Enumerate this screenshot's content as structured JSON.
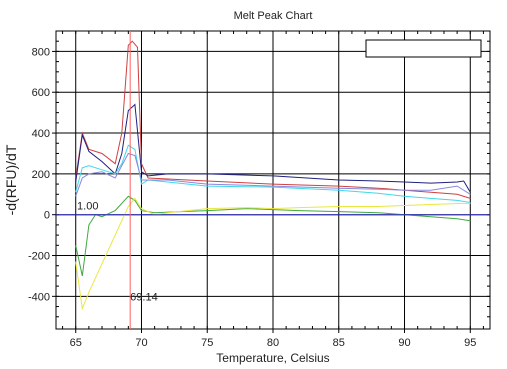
{
  "chart_data": {
    "type": "line",
    "title": "Melt Peak Chart",
    "xlabel": "Temperature, Celsius",
    "ylabel": "-d(RFU)/dT",
    "xlim": [
      63.5,
      96.5
    ],
    "ylim": [
      -560,
      900
    ],
    "xticks": [
      65,
      70,
      75,
      80,
      85,
      90,
      95
    ],
    "yticks": [
      -400,
      -200,
      0,
      200,
      400,
      600,
      800
    ],
    "grid": true,
    "legend": "top-right (empty box)",
    "threshold": {
      "value": 0,
      "label": "1.00",
      "label_x": 65.1,
      "color": "#3030c0"
    },
    "marker": {
      "x": 69.14,
      "label": "69.14",
      "color": "#ff6060"
    },
    "series": [
      {
        "color": "#d04040",
        "points": [
          [
            65,
            180
          ],
          [
            65.5,
            400
          ],
          [
            66,
            320
          ],
          [
            67,
            300
          ],
          [
            68,
            250
          ],
          [
            68.5,
            400
          ],
          [
            69,
            830
          ],
          [
            69.3,
            850
          ],
          [
            69.7,
            820
          ],
          [
            70,
            250
          ],
          [
            70.5,
            180
          ],
          [
            72,
            175
          ],
          [
            75,
            165
          ],
          [
            80,
            150
          ],
          [
            85,
            140
          ],
          [
            88,
            130
          ],
          [
            90,
            120
          ],
          [
            92,
            110
          ],
          [
            94,
            100
          ],
          [
            95,
            80
          ]
        ]
      },
      {
        "color": "#202080",
        "points": [
          [
            65,
            160
          ],
          [
            65.5,
            390
          ],
          [
            66,
            310
          ],
          [
            67,
            260
          ],
          [
            68,
            200
          ],
          [
            68.5,
            300
          ],
          [
            69,
            510
          ],
          [
            69.5,
            540
          ],
          [
            70,
            210
          ],
          [
            70.5,
            190
          ],
          [
            72,
            200
          ],
          [
            75,
            200
          ],
          [
            80,
            190
          ],
          [
            85,
            170
          ],
          [
            88,
            165
          ],
          [
            90,
            160
          ],
          [
            92,
            155
          ],
          [
            94,
            160
          ],
          [
            94.5,
            165
          ],
          [
            95,
            110
          ]
        ]
      },
      {
        "color": "#40d8e8",
        "points": [
          [
            65,
            110
          ],
          [
            65.5,
            230
          ],
          [
            66,
            240
          ],
          [
            67,
            220
          ],
          [
            68,
            200
          ],
          [
            68.5,
            250
          ],
          [
            69,
            340
          ],
          [
            69.5,
            320
          ],
          [
            70,
            150
          ],
          [
            70.5,
            170
          ],
          [
            72,
            160
          ],
          [
            75,
            140
          ],
          [
            80,
            135
          ],
          [
            85,
            120
          ],
          [
            88,
            105
          ],
          [
            90,
            90
          ],
          [
            92,
            80
          ],
          [
            94,
            70
          ],
          [
            95,
            60
          ]
        ]
      },
      {
        "color": "#8888e0",
        "points": [
          [
            65,
            90
          ],
          [
            65.5,
            180
          ],
          [
            66,
            200
          ],
          [
            67,
            210
          ],
          [
            68,
            180
          ],
          [
            69,
            300
          ],
          [
            69.5,
            290
          ],
          [
            70,
            170
          ],
          [
            72,
            170
          ],
          [
            75,
            150
          ],
          [
            80,
            140
          ],
          [
            85,
            130
          ],
          [
            88,
            125
          ],
          [
            90,
            120
          ],
          [
            92,
            120
          ],
          [
            94,
            140
          ],
          [
            95,
            100
          ]
        ]
      },
      {
        "color": "#40a840",
        "points": [
          [
            65,
            -150
          ],
          [
            65.5,
            -300
          ],
          [
            66,
            -50
          ],
          [
            66.5,
            0
          ],
          [
            67,
            -10
          ],
          [
            68,
            20
          ],
          [
            69,
            90
          ],
          [
            69.5,
            70
          ],
          [
            70,
            20
          ],
          [
            71,
            10
          ],
          [
            73,
            15
          ],
          [
            75,
            20
          ],
          [
            78,
            30
          ],
          [
            80,
            25
          ],
          [
            82,
            20
          ],
          [
            85,
            15
          ],
          [
            88,
            10
          ],
          [
            90,
            0
          ],
          [
            92,
            -10
          ],
          [
            94,
            -20
          ],
          [
            95,
            -30
          ]
        ]
      },
      {
        "color": "#e8e840",
        "points": [
          [
            65,
            -230
          ],
          [
            65.5,
            -460
          ],
          [
            66,
            -380
          ],
          [
            67,
            -240
          ],
          [
            68,
            -100
          ],
          [
            69,
            40
          ],
          [
            69.5,
            80
          ],
          [
            70,
            30
          ],
          [
            71,
            0
          ],
          [
            72,
            10
          ],
          [
            75,
            30
          ],
          [
            78,
            35
          ],
          [
            80,
            30
          ],
          [
            82,
            35
          ],
          [
            85,
            40
          ],
          [
            88,
            40
          ],
          [
            90,
            45
          ],
          [
            92,
            50
          ],
          [
            94,
            55
          ],
          [
            95,
            55
          ]
        ]
      }
    ]
  }
}
